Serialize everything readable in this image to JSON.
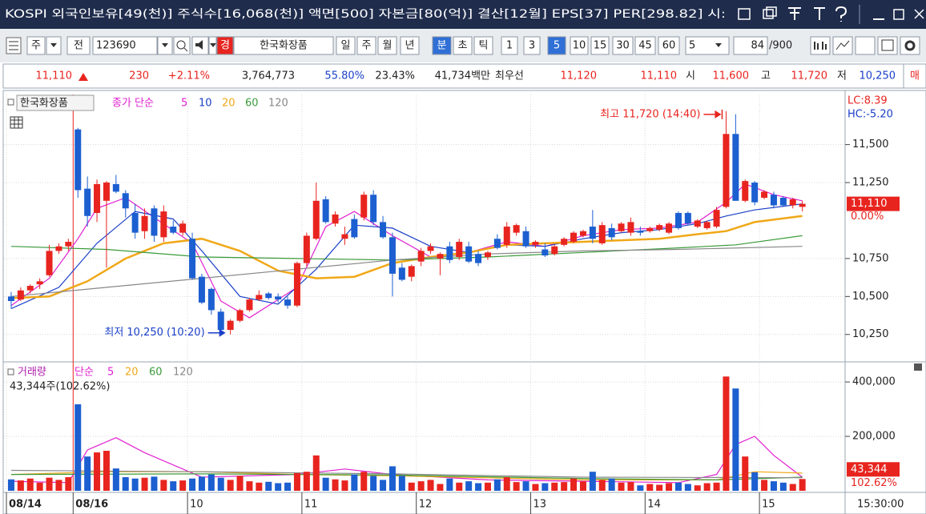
{
  "title_bar": {
    "text": "KOSPI 외국인보유[49(천)] 주식수[16,068(천)] 액면[500] 자본금[80(억)] 결산[12월] EPS[37] PER[298.82] 시:"
  },
  "toolbar": {
    "market": "주",
    "mode": "전",
    "code": "123690",
    "badge": "경",
    "name": "한국화장품",
    "periods": [
      "일",
      "주",
      "월",
      "년",
      "분",
      "초",
      "틱"
    ],
    "intervals": [
      "1",
      "3",
      "5",
      "10",
      "15",
      "30",
      "45",
      "60"
    ],
    "unit": "5",
    "count": "84",
    "max_count": "/900"
  },
  "quote": {
    "price": "11,110",
    "change": "230",
    "change_pct": "+2.11%",
    "volume": "3,764,773",
    "vol_ratio": "55.80%",
    "turnover": "23.43%",
    "amount": "41,734백만",
    "best_label": "최우선",
    "ask": "11,120",
    "bid": "11,110",
    "open_label": "시",
    "open": "11,600",
    "high_label": "고",
    "high": "11,720",
    "low_label": "저",
    "low": "10,250",
    "more": "매"
  },
  "chart_data": {
    "type": "candlestick",
    "title": "한국화장품",
    "ma_label": "종가 단순",
    "up_color": "#e8241f",
    "down_color": "#1c5fd0",
    "grid": true,
    "categories": [
      "08/14",
      null,
      null,
      null,
      null,
      null,
      null,
      "08/16",
      null,
      null,
      null,
      null,
      null,
      null,
      null,
      null,
      null,
      null,
      null,
      "10",
      null,
      null,
      null,
      null,
      null,
      null,
      null,
      null,
      null,
      null,
      null,
      "11",
      null,
      null,
      null,
      null,
      null,
      null,
      null,
      null,
      null,
      null,
      null,
      "12",
      null,
      null,
      null,
      null,
      null,
      null,
      null,
      null,
      null,
      null,
      null,
      "13",
      null,
      null,
      null,
      null,
      null,
      null,
      null,
      null,
      null,
      null,
      null,
      "14",
      null,
      null,
      null,
      null,
      null,
      null,
      null,
      null,
      null,
      null,
      null,
      "15",
      null,
      null,
      null,
      null
    ],
    "open": [
      10500,
      10480,
      10540,
      10580,
      10640,
      10800,
      10830,
      11600,
      11210,
      11050,
      11130,
      11240,
      11180,
      11050,
      10930,
      11080,
      10890,
      10960,
      10920,
      10880,
      10630,
      10550,
      10400,
      10280,
      10340,
      10410,
      10480,
      10520,
      10500,
      10480,
      10440,
      10720,
      10880,
      11140,
      10980,
      10880,
      11010,
      11020,
      11170,
      10990,
      10890,
      10690,
      10630,
      10730,
      10800,
      10750,
      10830,
      10760,
      10830,
      10780,
      10760,
      10880,
      10840,
      10920,
      10930,
      10840,
      10810,
      10780,
      10840,
      10860,
      10900,
      10960,
      10850,
      10950,
      10930,
      10920,
      10930,
      10930,
      10940,
      10920,
      11050,
      11050,
      10960,
      10950,
      10960,
      11090,
      11570,
      11130,
      11250,
      11150,
      11170,
      11150,
      11100,
      11090
    ],
    "high": [
      10530,
      10560,
      10580,
      10620,
      10840,
      10850,
      10880,
      11610,
      11290,
      11270,
      11260,
      11300,
      11200,
      11110,
      11080,
      11100,
      11100,
      11000,
      11000,
      10920,
      10650,
      10560,
      10420,
      10350,
      10420,
      10490,
      10540,
      10530,
      10520,
      10500,
      10730,
      10920,
      11250,
      11160,
      11060,
      10960,
      11040,
      11190,
      11200,
      11030,
      10920,
      10720,
      10710,
      10820,
      10850,
      10790,
      10860,
      10880,
      10860,
      10800,
      10800,
      10910,
      10990,
      10980,
      10960,
      10870,
      10850,
      10840,
      10890,
      10930,
      10940,
      11070,
      10990,
      10980,
      10990,
      11020,
      10960,
      10960,
      10980,
      10990,
      11060,
      11060,
      11010,
      11000,
      11090,
      11720,
      11700,
      11270,
      11260,
      11200,
      11190,
      11160,
      11150,
      11130
    ],
    "low": [
      10420,
      10470,
      10520,
      10550,
      10630,
      10780,
      10800,
      11150,
      10960,
      10990,
      10690,
      11180,
      11020,
      10880,
      10880,
      10860,
      10860,
      10910,
      10900,
      10610,
      10450,
      10380,
      10270,
      10250,
      10330,
      10400,
      10470,
      10480,
      10460,
      10420,
      10430,
      10700,
      10870,
      10980,
      10960,
      10840,
      10880,
      11000,
      10970,
      10880,
      10500,
      10600,
      10600,
      10700,
      10780,
      10640,
      10720,
      10740,
      10720,
      10700,
      10740,
      10810,
      10820,
      10900,
      10820,
      10820,
      10760,
      10770,
      10830,
      10850,
      10890,
      10850,
      10840,
      10870,
      10920,
      10900,
      10900,
      10920,
      10930,
      10910,
      10940,
      10970,
      10950,
      10940,
      10950,
      11080,
      11130,
      11120,
      11100,
      11140,
      11080,
      11090,
      11080,
      11060
    ],
    "close": [
      10470,
      10540,
      10570,
      10600,
      10800,
      10830,
      10860,
      11200,
      11030,
      11240,
      11250,
      11190,
      11080,
      10920,
      11030,
      10900,
      11060,
      10920,
      10980,
      10620,
      10460,
      10410,
      10280,
      10340,
      10410,
      10480,
      10510,
      10490,
      10480,
      10440,
      10720,
      10900,
      11130,
      10990,
      11040,
      10910,
      10890,
      11170,
      10990,
      10890,
      10650,
      10610,
      10700,
      10800,
      10830,
      10780,
      10740,
      10860,
      10730,
      10720,
      10790,
      10820,
      10960,
      10970,
      10830,
      10860,
      10770,
      10830,
      10880,
      10920,
      10930,
      10880,
      10970,
      10890,
      10980,
      10990,
      10920,
      10950,
      10970,
      10980,
      10950,
      10980,
      11000,
      10990,
      11070,
      11570,
      11130,
      11260,
      11120,
      11190,
      11100,
      11100,
      11140,
      11110
    ],
    "series": [
      {
        "name": "5",
        "color": "#e020d0",
        "x": [
          0,
          4,
          7,
          9,
          12,
          15,
          19,
          22,
          25,
          28,
          30,
          33,
          36,
          40,
          44,
          48,
          52,
          56,
          60,
          64,
          68,
          72,
          75,
          77,
          80,
          83
        ],
        "values": [
          10440,
          10620,
          10880,
          11080,
          11150,
          11020,
          10850,
          10470,
          10360,
          10480,
          10560,
          10960,
          11060,
          10900,
          10760,
          10790,
          10860,
          10830,
          10900,
          10940,
          10950,
          10990,
          11120,
          11240,
          11170,
          11130
        ]
      },
      {
        "name": "10",
        "color": "#1a3fc8",
        "x": [
          0,
          5,
          9,
          13,
          17,
          20,
          24,
          28,
          32,
          36,
          40,
          44,
          48,
          52,
          56,
          60,
          64,
          68,
          72,
          75,
          78,
          83
        ],
        "values": [
          10420,
          10560,
          10850,
          11060,
          11010,
          10800,
          10500,
          10450,
          10680,
          10970,
          10950,
          10830,
          10790,
          10840,
          10830,
          10880,
          10920,
          10940,
          10980,
          11030,
          11070,
          11110
        ]
      },
      {
        "name": "20",
        "color": "#f0a818",
        "x": [
          0,
          4,
          8,
          12,
          16,
          20,
          24,
          28,
          32,
          36,
          40,
          44,
          48,
          52,
          56,
          60,
          64,
          68,
          72,
          75,
          78,
          83
        ],
        "values": [
          10490,
          10500,
          10600,
          10750,
          10850,
          10880,
          10800,
          10670,
          10620,
          10630,
          10720,
          10760,
          10790,
          10840,
          10850,
          10860,
          10870,
          10880,
          10910,
          10930,
          10990,
          11030
        ]
      },
      {
        "name": "60",
        "color": "#3a9a3a",
        "x": [
          0,
          10,
          20,
          30,
          40,
          50,
          60,
          70,
          76,
          83
        ],
        "values": [
          10830,
          10810,
          10760,
          10750,
          10740,
          10760,
          10790,
          10820,
          10840,
          10900
        ]
      },
      {
        "name": "120",
        "color": "#888888",
        "x": [
          0,
          10,
          20,
          30,
          40,
          50,
          60,
          70,
          83
        ],
        "values": [
          10500,
          10560,
          10620,
          10680,
          10740,
          10780,
          10800,
          10810,
          10830
        ]
      }
    ],
    "ylim": [
      10080,
      11830
    ],
    "yticks": [
      {
        "value": 10250,
        "label": "10,250"
      },
      {
        "value": 10500,
        "label": "10,500"
      },
      {
        "value": 10750,
        "label": "10,750"
      },
      {
        "value": 11250,
        "label": "11,250"
      },
      {
        "value": 11500,
        "label": "11,500"
      }
    ],
    "annotations": [
      {
        "text": "최고 11,720 (14:40)",
        "color": "#e8241f"
      },
      {
        "text": "최저 10,250 (10:20)",
        "color": "#1a3fc8"
      }
    ],
    "last_label": "11,110",
    "last_change": "0.00%",
    "lc_label": "LC:8.39",
    "hc_label": "HC:-5.20",
    "time_label": "15:30:00",
    "volume": {
      "type": "bar",
      "title": "거래량",
      "ma_label": "단순",
      "info": "43,344주(102.62%)",
      "last_label": "43,344",
      "last_pct": "102.62%",
      "values": [
        42000,
        38000,
        45000,
        30000,
        48000,
        40000,
        50000,
        318000,
        126000,
        141000,
        147000,
        82000,
        50000,
        45000,
        48000,
        52000,
        40000,
        35000,
        38000,
        45000,
        52000,
        60000,
        48000,
        40000,
        55000,
        35000,
        30000,
        33000,
        28000,
        30000,
        65000,
        70000,
        130000,
        48000,
        42000,
        38000,
        60000,
        70000,
        55000,
        40000,
        90000,
        55000,
        30000,
        35000,
        40000,
        25000,
        45000,
        30000,
        35000,
        28000,
        30000,
        42000,
        50000,
        32000,
        35000,
        25000,
        28000,
        30000,
        32000,
        45000,
        35000,
        70000,
        40000,
        45000,
        30000,
        32000,
        20000,
        25000,
        22000,
        28000,
        30000,
        25000,
        20000,
        28000,
        30000,
        420000,
        376000,
        126000,
        68000,
        40000,
        35000,
        30000,
        25000,
        43344
      ],
      "series": [
        {
          "name": "5",
          "color": "#e020d0",
          "x": [
            0,
            6,
            8,
            11,
            14,
            20,
            30,
            35,
            40,
            50,
            60,
            70,
            74,
            76,
            78,
            80,
            83
          ],
          "values": [
            35000,
            30000,
            150000,
            195000,
            140000,
            50000,
            60000,
            80000,
            60000,
            40000,
            35000,
            30000,
            60000,
            170000,
            200000,
            130000,
            50000
          ]
        },
        {
          "name": "20",
          "color": "#f0a818",
          "x": [
            0,
            10,
            20,
            30,
            40,
            60,
            74,
            78,
            83
          ],
          "values": [
            60000,
            70000,
            70000,
            60000,
            55000,
            40000,
            40000,
            70000,
            65000
          ]
        },
        {
          "name": "60",
          "color": "#3a9a3a",
          "x": [
            0,
            20,
            40,
            60,
            74,
            83
          ],
          "values": [
            60000,
            62000,
            58000,
            45000,
            40000,
            50000
          ]
        },
        {
          "name": "120",
          "color": "#888888",
          "x": [
            0,
            20,
            40,
            60,
            83
          ],
          "values": [
            75000,
            70000,
            62000,
            50000,
            48000
          ]
        }
      ],
      "ylim": [
        0,
        465000
      ],
      "yticks": [
        {
          "value": 200000,
          "label": "200,000"
        },
        {
          "value": 400000,
          "label": "400,000"
        }
      ]
    }
  }
}
